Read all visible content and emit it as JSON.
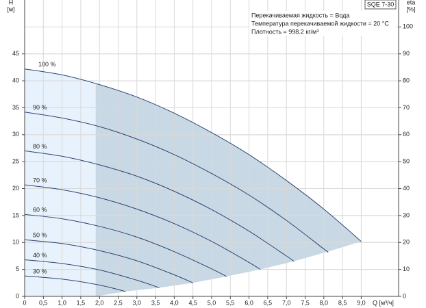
{
  "chart_data": {
    "type": "line",
    "model": "SQE 7-30",
    "info": [
      "Перекачиваемая жидкость = Вода",
      "Температура перекачиваемой жидкости = 20 °C",
      "Плотность = 998.2 кг/м³"
    ],
    "y_label": [
      "H",
      "[м]"
    ],
    "y2_label": [
      "eta",
      "[%]"
    ],
    "x_label": "Q [м³/ч]",
    "xlim": [
      0,
      10
    ],
    "ylim": [
      0,
      55
    ],
    "y2lim": [
      0,
      110
    ],
    "xticks": [
      0,
      {
        "value": 0.5,
        "label": "0,5"
      },
      {
        "value": 1,
        "label": "1,0"
      },
      {
        "value": 1.5,
        "label": "1,5"
      },
      {
        "value": 2,
        "label": "2,0"
      },
      {
        "value": 2.5,
        "label": "2,5"
      },
      {
        "value": 3,
        "label": "3,0"
      },
      {
        "value": 3.5,
        "label": "3,5"
      },
      {
        "value": 4,
        "label": "4,0"
      },
      {
        "value": 4.5,
        "label": "4,5"
      },
      {
        "value": 5,
        "label": "5,0"
      },
      {
        "value": 5.5,
        "label": "5,5"
      },
      {
        "value": 6,
        "label": "6,0"
      },
      {
        "value": 6.5,
        "label": "6,5"
      },
      {
        "value": 7,
        "label": "7,0"
      },
      {
        "value": 7.5,
        "label": "7,5"
      },
      {
        "value": 8,
        "label": "8,0"
      },
      {
        "value": 8.5,
        "label": "8,5"
      },
      {
        "value": 9,
        "label": "9,0"
      }
    ],
    "yticks": [
      0,
      5,
      10,
      15,
      20,
      25,
      30,
      35,
      40,
      45
    ],
    "y2ticks": [
      0,
      10,
      20,
      30,
      40,
      50,
      60,
      70,
      80,
      90,
      100
    ],
    "grid": true,
    "operating_range_start": 1.9,
    "range_colors": [
      "#e8f2fc",
      "#c9d8e5"
    ],
    "series": [
      {
        "name": "100 %",
        "color": "#2b4470",
        "x": [
          0,
          1,
          2,
          3,
          4,
          5,
          6,
          7,
          8,
          9
        ],
        "values": [
          42.2,
          41.1,
          39.3,
          37.0,
          34.0,
          30.4,
          26.3,
          21.5,
          16.2,
          10.2
        ]
      },
      {
        "name": "90 %",
        "color": "#2b4470",
        "x": [
          0,
          1,
          2,
          3,
          4,
          5,
          6,
          7,
          8,
          8.1
        ],
        "values": [
          34.2,
          33.1,
          31.5,
          29.2,
          26.3,
          22.8,
          18.8,
          14.1,
          8.8,
          8.3
        ]
      },
      {
        "name": "80 %",
        "color": "#2b4470",
        "x": [
          0,
          1,
          2,
          3,
          4,
          5,
          6,
          7,
          7.2
        ],
        "values": [
          27.0,
          26.0,
          24.4,
          22.3,
          19.5,
          16.1,
          12.1,
          7.5,
          6.5
        ]
      },
      {
        "name": "70 %",
        "color": "#2b4470",
        "x": [
          0,
          1,
          2,
          3,
          4,
          5,
          6,
          6.3
        ],
        "values": [
          20.7,
          19.8,
          18.3,
          16.2,
          13.5,
          10.2,
          6.3,
          5.0
        ]
      },
      {
        "name": "60 %",
        "color": "#2b4470",
        "x": [
          0,
          1,
          2,
          3,
          4,
          5,
          5.4
        ],
        "values": [
          15.2,
          14.4,
          13.0,
          11.0,
          8.3,
          5.1,
          3.7
        ]
      },
      {
        "name": "50 %",
        "color": "#2b4470",
        "x": [
          0,
          1,
          2,
          3,
          4,
          4.5
        ],
        "values": [
          10.5,
          9.8,
          8.5,
          6.6,
          4.0,
          2.5
        ]
      },
      {
        "name": "40 %",
        "color": "#2b4470",
        "x": [
          0,
          1,
          2,
          3,
          3.6
        ],
        "values": [
          6.8,
          6.1,
          4.9,
          3.0,
          1.6
        ]
      },
      {
        "name": "30 %",
        "color": "#2b4470",
        "x": [
          0,
          1,
          2,
          2.7
        ],
        "values": [
          3.8,
          3.2,
          2.1,
          0.9
        ]
      }
    ]
  }
}
